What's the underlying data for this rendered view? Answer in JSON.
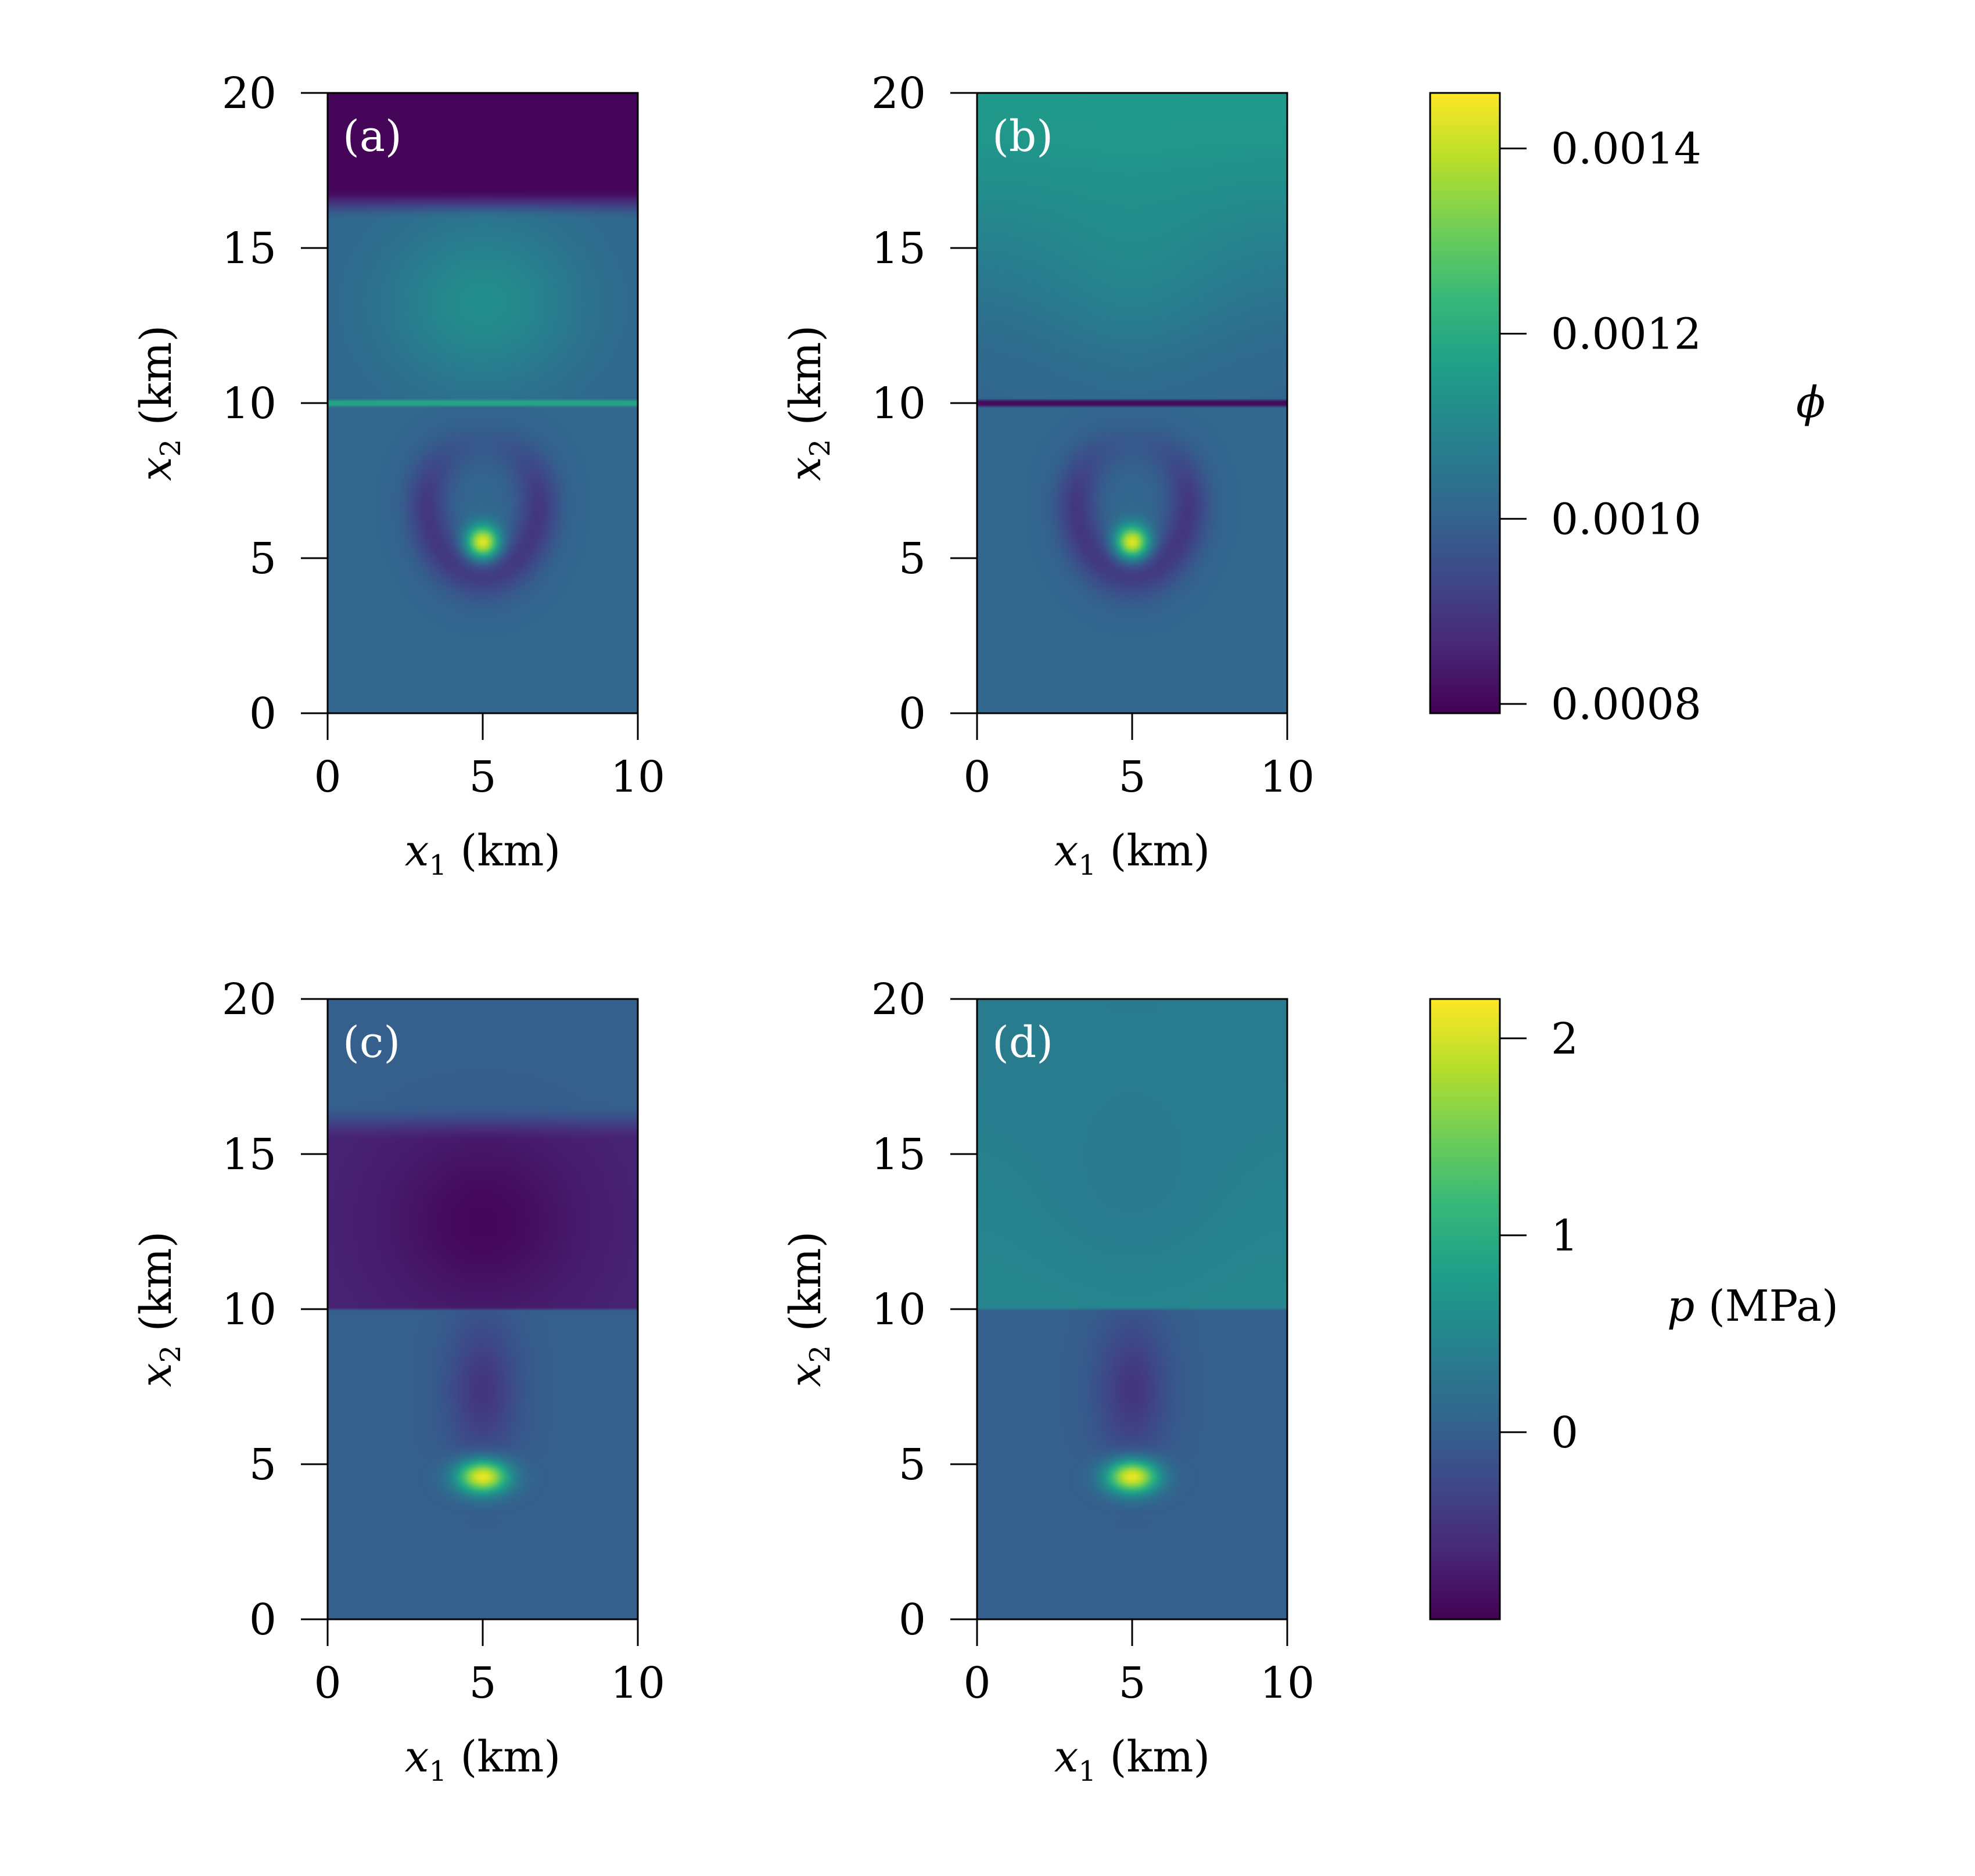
{
  "figure": {
    "colormap": [
      "#440154",
      "#482878",
      "#3e4989",
      "#31688e",
      "#26828e",
      "#1f9e89",
      "#35b779",
      "#6ece58",
      "#b5de2b",
      "#fde725"
    ]
  },
  "chart_data": [
    {
      "type": "heatmap",
      "panel": "(a)",
      "xlabel": "x1 (km)",
      "ylabel": "x2 (km)",
      "xlim": [
        0,
        10
      ],
      "ylim": [
        0,
        20
      ],
      "xticks": [
        "0",
        "5",
        "10"
      ],
      "yticks": [
        "0",
        "5",
        "10",
        "15",
        "20"
      ],
      "colorbar": "phi",
      "field": {
        "kind": "phi",
        "background": 0.00101,
        "upper_layer_value": 0.0008,
        "upper_layer_from": 16.4,
        "interface_x2": 10.0,
        "interface_value": 0.00118,
        "upper_blob": {
          "x1": 5.0,
          "x2": 13.2,
          "amplitude": 0.00011
        },
        "peak": {
          "x1": 5.0,
          "x2": 5.5,
          "value": 0.00146
        },
        "low_ring": {
          "x1": 5.0,
          "x2": 6.8,
          "amplitude": -0.00011
        }
      }
    },
    {
      "type": "heatmap",
      "panel": "(b)",
      "xlabel": "x1 (km)",
      "ylabel": "x2 (km)",
      "xlim": [
        0,
        10
      ],
      "ylim": [
        0,
        20
      ],
      "xticks": [
        "0",
        "5",
        "10"
      ],
      "yticks": [
        "0",
        "5",
        "10",
        "15",
        "20"
      ],
      "colorbar": "phi",
      "field": {
        "kind": "phi",
        "background": 0.00101,
        "top_value": 0.00115,
        "top_gradient_from": 10.0,
        "interface_x2": 10.0,
        "interface_value": 0.00081,
        "upper_blob": {
          "x1": 5.0,
          "x2": 13.5,
          "amplitude": 4e-05
        },
        "peak": {
          "x1": 5.0,
          "x2": 5.5,
          "value": 0.00146
        },
        "low_ring": {
          "x1": 5.0,
          "x2": 6.8,
          "amplitude": -0.00011
        }
      }
    },
    {
      "type": "heatmap",
      "panel": "(c)",
      "xlabel": "x1 (km)",
      "ylabel": "x2 (km)",
      "xlim": [
        0,
        10
      ],
      "ylim": [
        0,
        20
      ],
      "xticks": [
        "0",
        "5",
        "10"
      ],
      "yticks": [
        "0",
        "5",
        "10",
        "15",
        "20"
      ],
      "colorbar": "p",
      "field": {
        "kind": "p",
        "background": 0.0,
        "upper_band": {
          "from": 10.0,
          "to": 16.0,
          "value": -0.65
        },
        "low_blob": {
          "x1": 5.0,
          "x2": 12.8,
          "amplitude": -0.25
        },
        "peak": {
          "x1": 5.0,
          "x2": 4.6,
          "value": 2.2
        },
        "low_plume": {
          "x1": 5.0,
          "x2": 7.4,
          "amplitude": -0.45
        }
      }
    },
    {
      "type": "heatmap",
      "panel": "(d)",
      "xlabel": "x1 (km)",
      "ylabel": "x2 (km)",
      "xlim": [
        0,
        10
      ],
      "ylim": [
        0,
        20
      ],
      "xticks": [
        "0",
        "5",
        "10"
      ],
      "yticks": [
        "0",
        "5",
        "10",
        "15",
        "20"
      ],
      "colorbar": "p",
      "field": {
        "kind": "p",
        "background": 0.0,
        "upper_region_value": 0.5,
        "upper_region_from": 10.0,
        "top_value": 0.35,
        "low_blob": {
          "x1": 5.0,
          "x2": 13.8,
          "amplitude": -0.12
        },
        "peak": {
          "x1": 5.0,
          "x2": 4.6,
          "value": 2.2
        },
        "low_plume": {
          "x1": 5.0,
          "x2": 7.4,
          "amplitude": -0.45
        }
      }
    }
  ],
  "colorbars": {
    "phi": {
      "title": "ϕ",
      "min": 0.00079,
      "max": 0.00146,
      "ticks": [
        {
          "value": 0.0008,
          "label": "0.0008"
        },
        {
          "value": 0.001,
          "label": "0.0010"
        },
        {
          "value": 0.0012,
          "label": "0.0012"
        },
        {
          "value": 0.0014,
          "label": "0.0014"
        }
      ]
    },
    "p": {
      "title": "p (MPa)",
      "min": -0.95,
      "max": 2.2,
      "ticks": [
        {
          "value": 0,
          "label": "0"
        },
        {
          "value": 1,
          "label": "1"
        },
        {
          "value": 2,
          "label": "2"
        }
      ]
    }
  }
}
